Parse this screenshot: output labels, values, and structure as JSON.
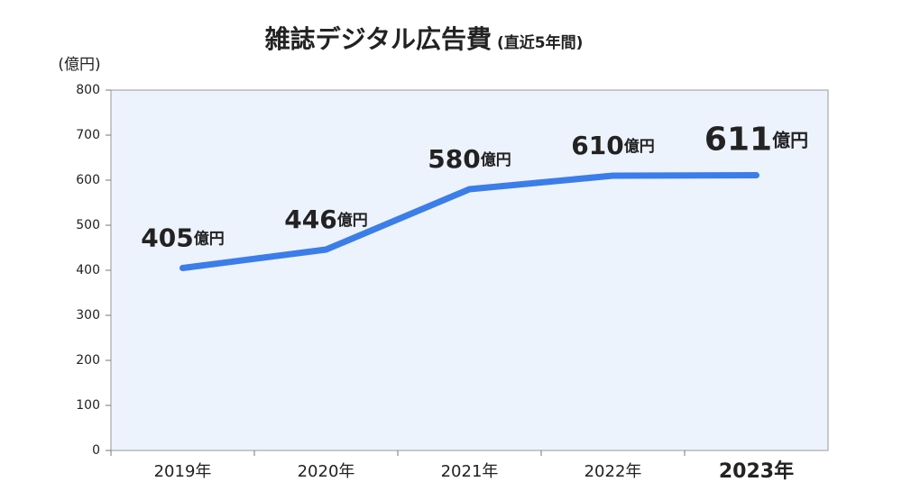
{
  "chart_data": {
    "type": "line",
    "title": "雑誌デジタル広告費",
    "subtitle": "(直近5年間)",
    "y_label": "(億円)",
    "categories": [
      "2019年",
      "2020年",
      "2021年",
      "2022年",
      "2023年"
    ],
    "series": [
      {
        "name": "雑誌デジタル広告費",
        "color": "#3b7de9",
        "values": [
          405,
          446,
          580,
          610,
          611
        ],
        "value_labels": [
          "405億円",
          "446億円",
          "580億円",
          "610億円",
          "611億円"
        ]
      }
    ],
    "ylim": [
      0,
      800
    ],
    "yticks": [
      0,
      100,
      200,
      300,
      400,
      500,
      600,
      700,
      800
    ],
    "plot_background": "#edf3fc",
    "highlight_index": 4,
    "highlight_color": "#e8003d"
  }
}
